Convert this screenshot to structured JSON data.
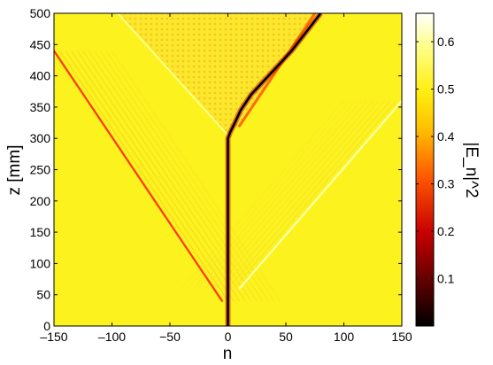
{
  "chart_data": {
    "type": "heatmap",
    "title": "",
    "xlabel": "n",
    "ylabel": "z [mm]",
    "colorbar_label": "|E_n|^2",
    "colormap": "hot",
    "background_color": "#fbf21e",
    "xlim": [
      -150,
      150
    ],
    "ylim": [
      0,
      500
    ],
    "clim": [
      0,
      0.66
    ],
    "x_ticks": [
      -150,
      -100,
      -50,
      0,
      50,
      100,
      150
    ],
    "x_tick_labels": [
      "–150",
      "–100",
      "−50",
      "0",
      "50",
      "100",
      "150"
    ],
    "y_ticks": [
      0,
      50,
      100,
      150,
      200,
      250,
      300,
      350,
      400,
      450,
      500
    ],
    "y_tick_labels": [
      "0",
      "50",
      "100",
      "150",
      "200",
      "250",
      "300",
      "350",
      "400",
      "450",
      "500"
    ],
    "colorbar_ticks": [
      0.1,
      0.2,
      0.3,
      0.4,
      0.5,
      0.6
    ],
    "colorbar_tick_labels": [
      "0.1",
      "0.2",
      "0.3",
      "0.4",
      "0.5",
      "0.6"
    ],
    "features": [
      {
        "kind": "central-soliton",
        "points": [
          [
            0,
            0
          ],
          [
            0,
            300
          ],
          [
            2,
            310
          ],
          [
            6,
            325
          ],
          [
            11,
            345
          ],
          [
            20,
            370
          ],
          [
            35,
            400
          ],
          [
            55,
            440
          ],
          [
            80,
            500
          ]
        ],
        "value": 0.0
      },
      {
        "kind": "left-radiation-edge",
        "points": [
          [
            -5,
            40
          ],
          [
            -150,
            440
          ]
        ],
        "value": 0.3
      },
      {
        "kind": "right-radiation-edge",
        "points": [
          [
            10,
            60
          ],
          [
            150,
            360
          ]
        ],
        "value": 0.6
      },
      {
        "kind": "upper-left-edge",
        "points": [
          [
            0,
            305
          ],
          [
            -95,
            500
          ]
        ],
        "value": 0.58
      },
      {
        "kind": "upper-right-edge",
        "points": [
          [
            10,
            320
          ],
          [
            75,
            500
          ]
        ],
        "value": 0.35
      }
    ]
  }
}
